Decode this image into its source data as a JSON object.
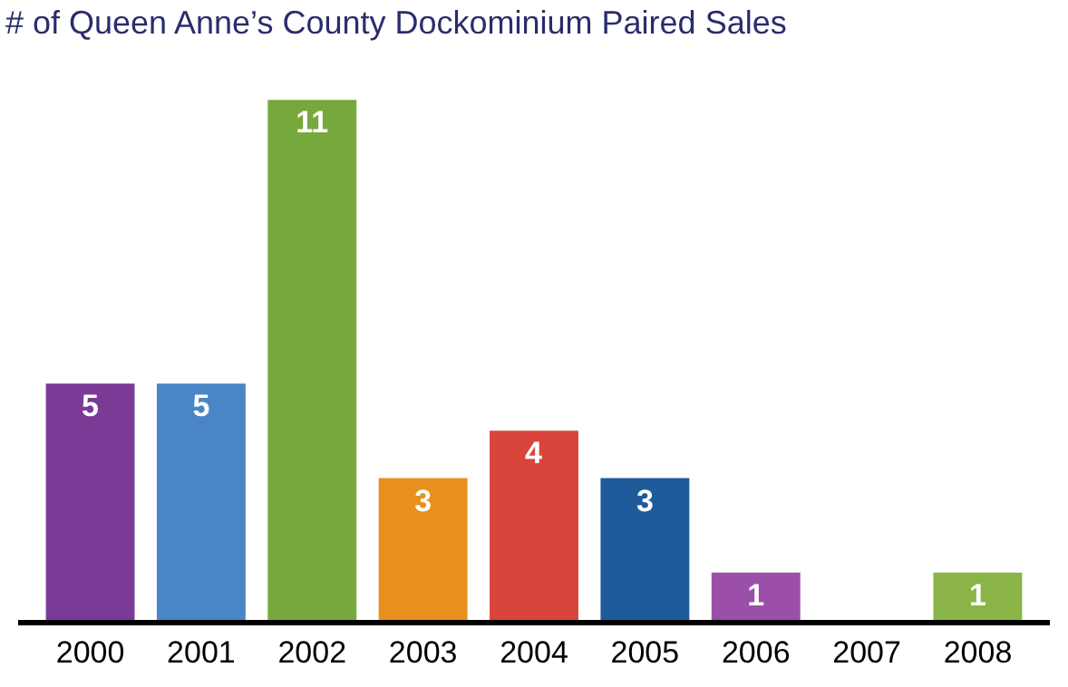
{
  "chart_data": {
    "type": "bar",
    "title": "# of Queen Anne’s County Dockominium Paired Sales",
    "categories": [
      "2000",
      "2001",
      "2002",
      "2003",
      "2004",
      "2005",
      "2006",
      "2007",
      "2008"
    ],
    "values": [
      5,
      5,
      11,
      3,
      4,
      3,
      1,
      0,
      1
    ],
    "value_labels": [
      "5",
      "5",
      "11",
      "3",
      "4",
      "3",
      "1",
      null,
      "1"
    ],
    "colors": [
      "#7b3a96",
      "#4a86c6",
      "#77a83c",
      "#e8901f",
      "#d9453b",
      "#1f5a9a",
      "#9b4fa8",
      "#8ab446",
      "#8ab446"
    ],
    "tick_labels": "x",
    "legend": false
  }
}
